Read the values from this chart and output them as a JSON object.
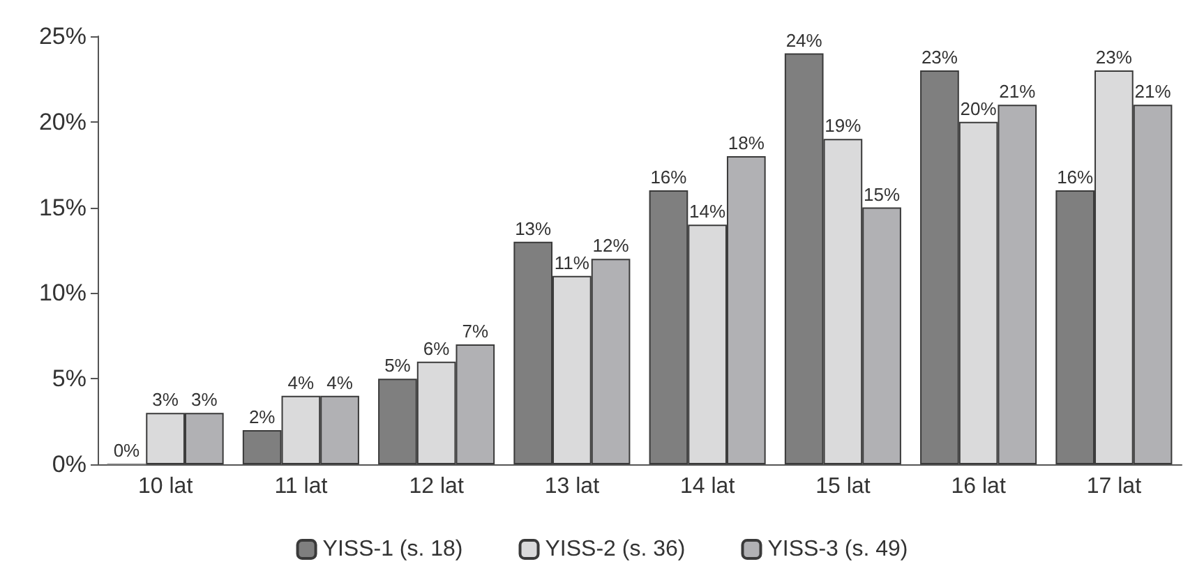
{
  "chart_data": {
    "type": "bar",
    "categories": [
      "10 lat",
      "11 lat",
      "12 lat",
      "13 lat",
      "14 lat",
      "15 lat",
      "16 lat",
      "17 lat"
    ],
    "series": [
      {
        "name": "YISS-1 (s. 18)",
        "color": "#7f7f7f",
        "values": [
          0,
          2,
          5,
          13,
          16,
          24,
          23,
          16
        ],
        "value_labels": [
          "0%",
          "2%",
          "5%",
          "13%",
          "16%",
          "24%",
          "23%",
          "16%"
        ]
      },
      {
        "name": "YISS-2 (s. 36)",
        "color": "#dadadb",
        "values": [
          3,
          4,
          6,
          11,
          14,
          19,
          20,
          23
        ],
        "value_labels": [
          "3%",
          "4%",
          "6%",
          "11%",
          "14%",
          "19%",
          "20%",
          "23%"
        ]
      },
      {
        "name": "YISS-3 (s. 49)",
        "color": "#b1b1b4",
        "values": [
          3,
          4,
          7,
          12,
          18,
          15,
          21,
          21
        ],
        "value_labels": [
          "3%",
          "4%",
          "7%",
          "12%",
          "18%",
          "15%",
          "21%",
          "21%"
        ]
      }
    ],
    "ylim": [
      0,
      25
    ],
    "yticks": [
      {
        "value": 0,
        "label": "0%"
      },
      {
        "value": 5,
        "label": "5%"
      },
      {
        "value": 10,
        "label": "10%"
      },
      {
        "value": 15,
        "label": "15%"
      },
      {
        "value": 20,
        "label": "20%"
      },
      {
        "value": 25,
        "label": "25%"
      }
    ],
    "grid": false,
    "legend": "bottom"
  }
}
